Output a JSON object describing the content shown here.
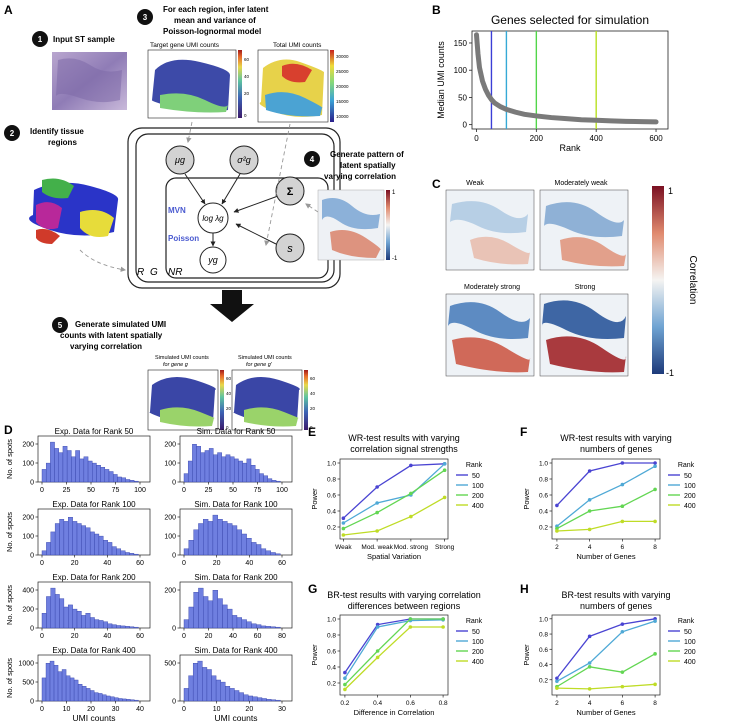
{
  "panels": {
    "A": {
      "letter": "A",
      "step1": {
        "num": "1",
        "label": "Input ST sample"
      },
      "step2": {
        "num": "2",
        "label1": "Identify tissue",
        "label2": "regions"
      },
      "step3": {
        "num": "3",
        "label1": "For each region, infer latent",
        "label2": "mean and variance of",
        "label3": "Poisson-lognormal model"
      },
      "step4": {
        "num": "4",
        "label1": "Generate pattern of",
        "label2": "latent spatially",
        "label3": "varying correlation"
      },
      "step5": {
        "num": "5",
        "label1": "Generate simulated UMI",
        "label2": "counts with latent spatially",
        "label3": "varying correlation"
      },
      "map_target": {
        "title": "Target gene UMI counts",
        "ticks": [
          "60",
          "40",
          "20",
          "0"
        ]
      },
      "map_total": {
        "title": "Total UMI counts",
        "ticks": [
          "30000",
          "25000",
          "20000",
          "15000",
          "10000"
        ]
      },
      "corr_map": {
        "ticks": [
          "1",
          "-1"
        ]
      },
      "sim_g": {
        "title1": "Simulated UMI counts",
        "title2": "for gene g",
        "ticks": [
          "60",
          "40",
          "20",
          "0"
        ]
      },
      "sim_gp": {
        "title1": "Simulated UMI counts",
        "title2": "for gene g'",
        "ticks": [
          "60",
          "40",
          "20",
          "0"
        ]
      },
      "model": {
        "mu": "μg",
        "sigma": "σ²g",
        "Sigma": "Σ",
        "s": "s",
        "log": "log λg",
        "y": "yg",
        "mvn": "MVN",
        "poisson": "Poisson",
        "R": "R",
        "G": "G",
        "N": "NR"
      }
    },
    "B": {
      "letter": "B"
    },
    "C": {
      "letter": "C",
      "maps": [
        "Weak",
        "Moderately weak",
        "Moderately strong",
        "Strong"
      ],
      "colorbar": {
        "label": "Correlation",
        "ticks": [
          "1",
          "-1"
        ]
      }
    },
    "D": {
      "letter": "D",
      "ylabel": "No. of spots",
      "xlabel": "UMI counts",
      "titles": [
        [
          "Exp. Data for Rank 50",
          "Sim. Data for Rank 50"
        ],
        [
          "Exp. Data for Rank 100",
          "Sim. Data for Rank 100"
        ],
        [
          "Exp. Data  for Rank 200",
          "Sim. Data for Rank 200"
        ],
        [
          "Exp. Data  for Rank 400",
          "Sim. Data for Rank 400"
        ]
      ],
      "xticks": [
        [
          [
            "0",
            "25",
            "50",
            "75",
            "100"
          ],
          [
            "0",
            "25",
            "50",
            "75",
            "100"
          ]
        ],
        [
          [
            "0",
            "20",
            "40",
            "60"
          ],
          [
            "0",
            "20",
            "40",
            "60"
          ]
        ],
        [
          [
            "0",
            "20",
            "40",
            "60"
          ],
          [
            "0",
            "20",
            "40",
            "60",
            "80"
          ]
        ],
        [
          [
            "0",
            "10",
            "20",
            "30",
            "40"
          ],
          [
            "0",
            "10",
            "20",
            "30"
          ]
        ]
      ],
      "yticks": [
        [
          [
            "0",
            "100",
            "200"
          ],
          [
            "0",
            "100",
            "200"
          ]
        ],
        [
          [
            "0",
            "100",
            "200"
          ],
          [
            "0",
            "100",
            "200"
          ]
        ],
        [
          [
            "0",
            "200",
            "400"
          ],
          [
            "0",
            "200"
          ]
        ],
        [
          [
            "0",
            "500",
            "1000"
          ],
          [
            "0",
            "500"
          ]
        ]
      ]
    },
    "E": {
      "letter": "E"
    },
    "F": {
      "letter": "F"
    },
    "G": {
      "letter": "G"
    },
    "H": {
      "letter": "H"
    }
  },
  "chart_data": [
    {
      "id": "B",
      "type": "line",
      "title": "Genes selected for simulation",
      "xlabel": "Rank",
      "ylabel": "Median UMI counts",
      "xlim": [
        -15,
        640
      ],
      "ylim": [
        -8,
        172
      ],
      "xticks": [
        "0",
        "200",
        "400",
        "600"
      ],
      "yticks": [
        "0",
        "50",
        "100",
        "150"
      ],
      "x": [
        0,
        5,
        10,
        20,
        30,
        40,
        50,
        60,
        80,
        100,
        130,
        160,
        200,
        250,
        300,
        350,
        400,
        450,
        500,
        550,
        600
      ],
      "y": [
        165,
        130,
        105,
        80,
        65,
        54,
        46,
        40,
        33,
        28,
        23,
        19,
        16,
        13,
        11,
        9,
        8,
        7,
        6,
        5.5,
        5
      ],
      "vlines": [
        {
          "x": 50,
          "color": "#3b3fd6"
        },
        {
          "x": 100,
          "color": "#35a9d6"
        },
        {
          "x": 200,
          "color": "#52d64a"
        },
        {
          "x": 400,
          "color": "#b8e021"
        }
      ]
    },
    {
      "id": "D",
      "type": "bar",
      "note": "histograms, bin heights as fractions of each panel's y-range",
      "hist": [
        [
          [
            0.3,
            0.45,
            0.95,
            0.8,
            0.7,
            0.85,
            0.75,
            0.6,
            0.75,
            0.55,
            0.6,
            0.5,
            0.45,
            0.4,
            0.35,
            0.3,
            0.25,
            0.18,
            0.12,
            0.1,
            0.06,
            0.04,
            0.02
          ],
          [
            0.2,
            0.5,
            0.9,
            0.85,
            0.7,
            0.75,
            0.8,
            0.65,
            0.7,
            0.6,
            0.65,
            0.6,
            0.55,
            0.5,
            0.45,
            0.55,
            0.4,
            0.3,
            0.2,
            0.15,
            0.08,
            0.04,
            0.02
          ]
        ],
        [
          [
            0.1,
            0.3,
            0.55,
            0.75,
            0.85,
            0.8,
            0.9,
            0.8,
            0.75,
            0.7,
            0.65,
            0.55,
            0.5,
            0.45,
            0.35,
            0.3,
            0.2,
            0.15,
            0.1,
            0.06,
            0.04,
            0.02
          ],
          [
            0.15,
            0.35,
            0.6,
            0.75,
            0.85,
            0.8,
            0.95,
            0.85,
            0.8,
            0.75,
            0.7,
            0.6,
            0.5,
            0.4,
            0.3,
            0.25,
            0.15,
            0.1,
            0.06,
            0.03
          ]
        ],
        [
          [
            0.35,
            0.75,
            0.95,
            0.8,
            0.7,
            0.5,
            0.55,
            0.45,
            0.4,
            0.3,
            0.35,
            0.25,
            0.2,
            0.18,
            0.15,
            0.1,
            0.08,
            0.06,
            0.05,
            0.04,
            0.03,
            0.02
          ],
          [
            0.2,
            0.5,
            0.85,
            0.95,
            0.75,
            0.65,
            0.9,
            0.7,
            0.55,
            0.45,
            0.3,
            0.25,
            0.2,
            0.15,
            0.1,
            0.08,
            0.05,
            0.04,
            0.03,
            0.02
          ]
        ],
        [
          [
            0.55,
            0.9,
            0.95,
            0.85,
            0.7,
            0.75,
            0.6,
            0.55,
            0.5,
            0.4,
            0.35,
            0.3,
            0.25,
            0.2,
            0.18,
            0.15,
            0.12,
            0.1,
            0.08,
            0.06,
            0.05,
            0.04,
            0.03,
            0.02
          ],
          [
            0.3,
            0.6,
            0.9,
            0.95,
            0.8,
            0.75,
            0.6,
            0.5,
            0.45,
            0.35,
            0.3,
            0.25,
            0.2,
            0.15,
            0.12,
            0.1,
            0.08,
            0.06,
            0.04,
            0.03,
            0.02
          ]
        ]
      ]
    },
    {
      "id": "E",
      "type": "line",
      "title": [
        "WR-test results with varying",
        "correlation signal strengths"
      ],
      "xlabel": "Spatial Variation",
      "ylabel": "Power",
      "categories": [
        "Weak",
        "Mod. weak",
        "Mod. strong",
        "Strong"
      ],
      "xlim": [
        -0.1,
        3.1
      ],
      "ylim": [
        0.05,
        1.05
      ],
      "yticks": [
        0.2,
        0.4,
        0.6,
        0.8,
        1.0
      ],
      "legend_title": "Rank",
      "series": [
        {
          "name": "50",
          "color": "#4a44d2",
          "values": [
            0.31,
            0.7,
            0.97,
            0.99
          ]
        },
        {
          "name": "100",
          "color": "#4fa9d6",
          "values": [
            0.25,
            0.5,
            0.6,
            0.99
          ]
        },
        {
          "name": "200",
          "color": "#63d653",
          "values": [
            0.18,
            0.38,
            0.62,
            0.91
          ]
        },
        {
          "name": "400",
          "color": "#bfdc26",
          "values": [
            0.1,
            0.15,
            0.33,
            0.57
          ]
        }
      ]
    },
    {
      "id": "F",
      "type": "line",
      "title": [
        "WR-test results with varying",
        "numbers of genes"
      ],
      "xlabel": "Number of Genes",
      "ylabel": "Power",
      "x": [
        2,
        4,
        6,
        8
      ],
      "xlim": [
        1.7,
        8.3
      ],
      "ylim": [
        0.05,
        1.05
      ],
      "xticks": [
        2,
        4,
        6,
        8
      ],
      "yticks": [
        0.2,
        0.4,
        0.6,
        0.8,
        1.0
      ],
      "legend_title": "Rank",
      "series": [
        {
          "name": "50",
          "color": "#4a44d2",
          "values": [
            0.47,
            0.9,
            1.0,
            1.0
          ]
        },
        {
          "name": "100",
          "color": "#4fa9d6",
          "values": [
            0.21,
            0.54,
            0.73,
            0.96
          ]
        },
        {
          "name": "200",
          "color": "#63d653",
          "values": [
            0.18,
            0.4,
            0.46,
            0.67
          ]
        },
        {
          "name": "400",
          "color": "#bfdc26",
          "values": [
            0.15,
            0.17,
            0.27,
            0.27
          ]
        }
      ]
    },
    {
      "id": "G",
      "type": "line",
      "title": [
        "BR-test results with varying correlation",
        "differences between regions"
      ],
      "xlabel": "Difference in Correlation",
      "ylabel": "Power",
      "x": [
        0.2,
        0.4,
        0.6,
        0.8
      ],
      "xlim": [
        0.17,
        0.83
      ],
      "ylim": [
        0.05,
        1.05
      ],
      "xticks": [
        0.2,
        0.4,
        0.6,
        0.8
      ],
      "yticks": [
        0.2,
        0.4,
        0.6,
        0.8,
        1.0
      ],
      "legend_title": "Rank",
      "series": [
        {
          "name": "50",
          "color": "#4a44d2",
          "values": [
            0.33,
            0.93,
            1.0,
            1.0
          ]
        },
        {
          "name": "100",
          "color": "#4fa9d6",
          "values": [
            0.26,
            0.9,
            0.98,
            0.99
          ]
        },
        {
          "name": "200",
          "color": "#63d653",
          "values": [
            0.18,
            0.6,
            1.0,
            1.0
          ]
        },
        {
          "name": "400",
          "color": "#bfdc26",
          "values": [
            0.12,
            0.52,
            0.9,
            0.9
          ]
        }
      ]
    },
    {
      "id": "H",
      "type": "line",
      "title": [
        "BR-test results with varying",
        "numbers of genes"
      ],
      "xlabel": "Number of Genes",
      "ylabel": "Power",
      "x": [
        2,
        4,
        6,
        8
      ],
      "xlim": [
        1.7,
        8.3
      ],
      "ylim": [
        0.0,
        1.05
      ],
      "xticks": [
        2,
        4,
        6,
        8
      ],
      "yticks": [
        0.2,
        0.4,
        0.6,
        0.8,
        1.0
      ],
      "legend_title": "Rank",
      "series": [
        {
          "name": "50",
          "color": "#4a44d2",
          "values": [
            0.22,
            0.77,
            0.93,
            1.0
          ]
        },
        {
          "name": "100",
          "color": "#4fa9d6",
          "values": [
            0.18,
            0.42,
            0.83,
            0.97
          ]
        },
        {
          "name": "200",
          "color": "#63d653",
          "values": [
            0.11,
            0.37,
            0.3,
            0.54
          ]
        },
        {
          "name": "400",
          "color": "#bfdc26",
          "values": [
            0.09,
            0.08,
            0.11,
            0.14
          ]
        }
      ]
    }
  ]
}
